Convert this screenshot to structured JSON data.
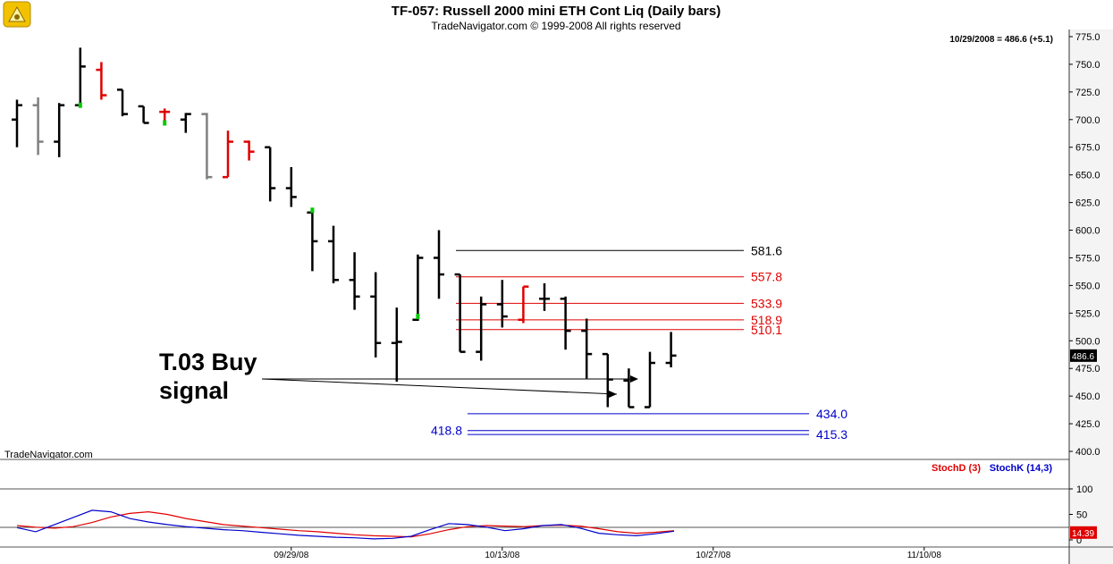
{
  "header": {
    "title": "TF-057:  Russell 2000 mini ETH Cont Liq  (Daily bars)",
    "subtitle": "TradeNavigator.com © 1999-2008 All rights reserved",
    "readout": "10/29/2008 = 486.6 (+5.1)",
    "watermark": "TradeNavigator.com"
  },
  "colors": {
    "up": "#000000",
    "down_red": "#e00000",
    "gray": "#808080",
    "green": "#00cc00",
    "resistance": "#e00000",
    "support": "#0000cc",
    "stochD": "#e00000",
    "stochK": "#0000cc"
  },
  "chart_data": [
    {
      "type": "bar",
      "subtype": "ohlc",
      "title": "TF-057:  Russell 2000 mini ETH Cont Liq  (Daily bars)",
      "ylim": [
        395,
        775
      ],
      "yticks": [
        "775.0",
        "750.0",
        "725.0",
        "700.0",
        "675.0",
        "650.0",
        "625.0",
        "600.0",
        "575.0",
        "550.0",
        "525.0",
        "500.0",
        "475.0",
        "450.0",
        "425.0",
        "400.0"
      ],
      "xticks": [
        {
          "label": "09/29/08",
          "index": 13
        },
        {
          "label": "10/13/08",
          "index": 23
        },
        {
          "label": "10/27/08",
          "index": 33
        },
        {
          "label": "11/10/08",
          "index": 43
        }
      ],
      "last_price_label": "486.6",
      "bars": [
        {
          "o": 700,
          "h": 718,
          "l": 675,
          "c": 713,
          "color": "up"
        },
        {
          "o": 713,
          "h": 720,
          "l": 668,
          "c": 680,
          "color": "gray"
        },
        {
          "o": 680,
          "h": 715,
          "l": 666,
          "c": 713,
          "color": "up"
        },
        {
          "o": 713,
          "h": 765,
          "l": 712,
          "c": 748,
          "color": "up",
          "mark": 713
        },
        {
          "o": 745,
          "h": 752,
          "l": 718,
          "c": 722,
          "color": "down_red"
        },
        {
          "o": 727,
          "h": 727,
          "l": 703,
          "c": 705,
          "color": "up"
        },
        {
          "o": 712,
          "h": 712,
          "l": 697,
          "c": 697,
          "color": "up"
        },
        {
          "o": 707,
          "h": 710,
          "l": 697,
          "c": 707,
          "color": "down_red",
          "mark": 697
        },
        {
          "o": 700,
          "h": 706,
          "l": 688,
          "c": 705,
          "color": "up"
        },
        {
          "o": 705,
          "h": 706,
          "l": 646,
          "c": 648,
          "color": "gray"
        },
        {
          "o": 648,
          "h": 690,
          "l": 648,
          "c": 680,
          "color": "down_red"
        },
        {
          "o": 680,
          "h": 681,
          "l": 663,
          "c": 671,
          "color": "down_red"
        },
        {
          "o": 675,
          "h": 675,
          "l": 626,
          "c": 638,
          "color": "up"
        },
        {
          "o": 638,
          "h": 657,
          "l": 621,
          "c": 630,
          "color": "up"
        },
        {
          "o": 616,
          "h": 620,
          "l": 563,
          "c": 590,
          "color": "up",
          "mark": 618
        },
        {
          "o": 590,
          "h": 604,
          "l": 552,
          "c": 555,
          "color": "up"
        },
        {
          "o": 555,
          "h": 580,
          "l": 528,
          "c": 540,
          "color": "up"
        },
        {
          "o": 540,
          "h": 562,
          "l": 485,
          "c": 498,
          "color": "up"
        },
        {
          "o": 498,
          "h": 530,
          "l": 463,
          "c": 499,
          "color": "up"
        },
        {
          "o": 519,
          "h": 578,
          "l": 518,
          "c": 575,
          "color": "up",
          "mark": 522
        },
        {
          "o": 575,
          "h": 600,
          "l": 538,
          "c": 560,
          "color": "up"
        },
        {
          "o": 560,
          "h": 560,
          "l": 490,
          "c": 490,
          "color": "up"
        },
        {
          "o": 490,
          "h": 540,
          "l": 482,
          "c": 533,
          "color": "up"
        },
        {
          "o": 533,
          "h": 555,
          "l": 512,
          "c": 522,
          "color": "up"
        },
        {
          "o": 519,
          "h": 549,
          "l": 516,
          "c": 549,
          "color": "down_red"
        },
        {
          "o": 538,
          "h": 552,
          "l": 527,
          "c": 538,
          "color": "up"
        },
        {
          "o": 538,
          "h": 540,
          "l": 492,
          "c": 509,
          "color": "up"
        },
        {
          "o": 509,
          "h": 520,
          "l": 466,
          "c": 488,
          "color": "up"
        },
        {
          "o": 488,
          "h": 488,
          "l": 440,
          "c": 465,
          "color": "up"
        },
        {
          "o": 464,
          "h": 475,
          "l": 440,
          "c": 440,
          "color": "up"
        },
        {
          "o": 440,
          "h": 490,
          "l": 440,
          "c": 480,
          "color": "up"
        },
        {
          "o": 480,
          "h": 508,
          "l": 476,
          "c": 486.6,
          "color": "up"
        }
      ],
      "levels": [
        {
          "value": 581.6,
          "label": "581.6",
          "color": "#000000"
        },
        {
          "value": 557.8,
          "label": "557.8",
          "color": "#e00000"
        },
        {
          "value": 533.9,
          "label": "533.9",
          "color": "#e00000"
        },
        {
          "value": 518.9,
          "label": "518.9",
          "color": "#e00000"
        },
        {
          "value": 510.1,
          "label": "510.1",
          "color": "#e00000"
        },
        {
          "value": 434.0,
          "label": "434.0",
          "color": "#0000cc"
        },
        {
          "value": 418.8,
          "label": "418.8",
          "color": "#0000cc",
          "label_side": "left"
        },
        {
          "value": 415.3,
          "label": "415.3",
          "color": "#0000cc"
        }
      ],
      "annotations": [
        {
          "text": "T.03 Buy",
          "line": 1
        },
        {
          "text": "signal",
          "line": 2
        }
      ]
    },
    {
      "type": "line",
      "title": "",
      "legend": [
        "StochD (3)",
        "StochK (14,3)"
      ],
      "ylim": [
        0,
        100
      ],
      "yticks": [
        "100",
        "50",
        "0"
      ],
      "last_value_label": "14.39",
      "series": [
        {
          "name": "StochD (3)",
          "color": "stochD",
          "values": [
            28,
            25,
            23,
            26,
            34,
            45,
            52,
            55,
            50,
            42,
            36,
            30,
            27,
            24,
            21,
            18,
            16,
            13,
            10,
            8,
            7,
            6,
            12,
            20,
            26,
            28,
            27,
            26,
            28,
            29,
            27,
            22,
            16,
            13,
            15,
            18
          ]
        },
        {
          "name": "StochK (14,3)",
          "color": "stochK",
          "values": [
            24,
            16,
            30,
            44,
            58,
            55,
            42,
            35,
            30,
            26,
            23,
            20,
            18,
            15,
            12,
            9,
            7,
            5,
            4,
            2,
            3,
            7,
            20,
            32,
            30,
            25,
            18,
            22,
            28,
            30,
            23,
            13,
            10,
            8,
            12,
            17
          ]
        }
      ]
    }
  ]
}
